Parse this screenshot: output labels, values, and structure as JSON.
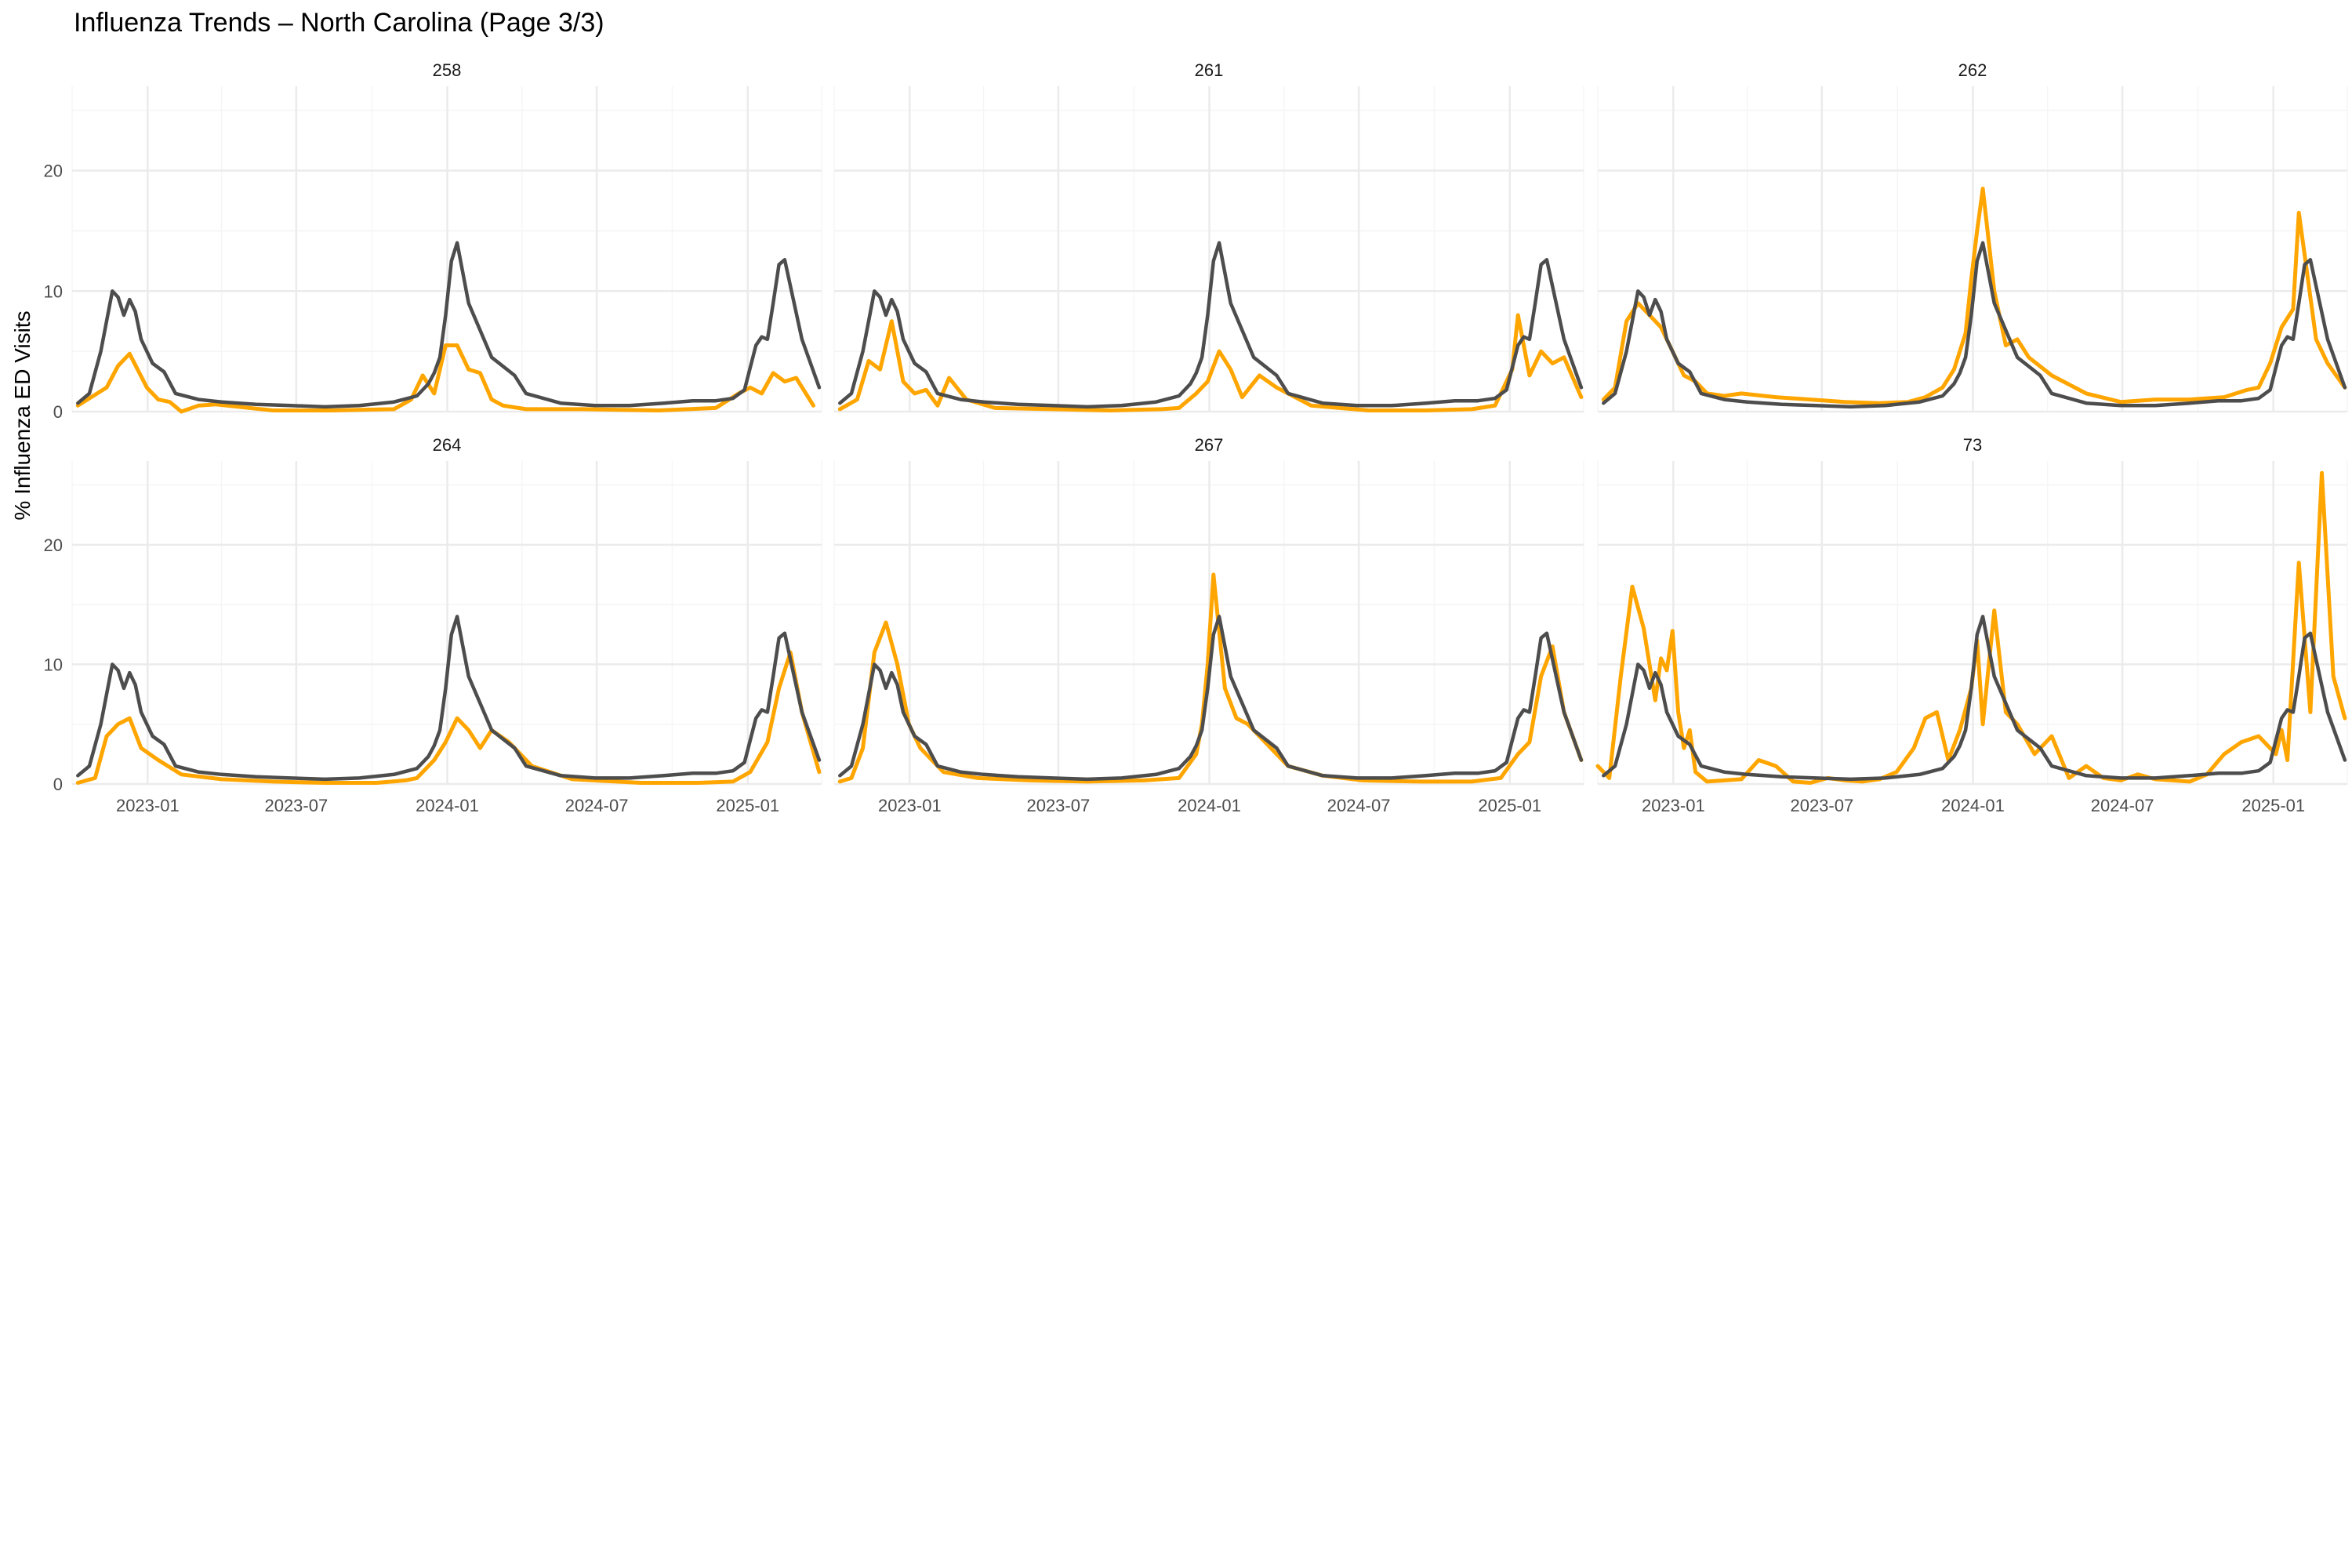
{
  "page_title": "Influenza Trends – North Carolina (Page 3/3)",
  "y_axis_label": "% Influenza ED Visits",
  "colors": {
    "local_series": "#FFA500",
    "state_series": "#4D4D4D",
    "grid_major": "#EBEBEB",
    "grid_minor": "#F5F5F5"
  },
  "chart_data": {
    "type": "line",
    "layout": "facet-grid 2 rows x 3 columns, shared axes",
    "legend": "none",
    "grid": true,
    "x_range": [
      "2022-10-01",
      "2025-04-01"
    ],
    "xlim": [
      "2022-10-01",
      "2025-04-01"
    ],
    "ylim": [
      0,
      27
    ],
    "x_ticks": [
      "2023-01",
      "2023-07",
      "2024-01",
      "2024-07",
      "2025-01"
    ],
    "x_tick_dates": [
      "2023-01-01",
      "2023-07-01",
      "2024-01-01",
      "2024-07-01",
      "2025-01-01"
    ],
    "y_ticks": [
      0,
      10,
      20
    ],
    "state_series": {
      "x": [
        "2022-10-08",
        "2022-10-22",
        "2022-11-05",
        "2022-11-19",
        "2022-11-26",
        "2022-12-03",
        "2022-12-10",
        "2022-12-17",
        "2022-12-24",
        "2023-01-07",
        "2023-01-21",
        "2023-02-04",
        "2023-03-04",
        "2023-04-01",
        "2023-05-13",
        "2023-06-24",
        "2023-08-05",
        "2023-09-16",
        "2023-10-28",
        "2023-11-25",
        "2023-12-09",
        "2023-12-16",
        "2023-12-23",
        "2023-12-30",
        "2024-01-06",
        "2024-01-13",
        "2024-01-27",
        "2024-02-24",
        "2024-03-23",
        "2024-04-06",
        "2024-05-18",
        "2024-06-29",
        "2024-08-10",
        "2024-09-21",
        "2024-10-26",
        "2024-11-23",
        "2024-12-14",
        "2024-12-28",
        "2025-01-11",
        "2025-01-18",
        "2025-01-25",
        "2025-02-01",
        "2025-02-08",
        "2025-02-15",
        "2025-03-08",
        "2025-03-29"
      ],
      "values": [
        0.7,
        1.5,
        5.0,
        10.0,
        9.5,
        8.0,
        9.3,
        8.3,
        6.0,
        4.0,
        3.3,
        1.5,
        1.0,
        0.8,
        0.6,
        0.5,
        0.4,
        0.5,
        0.8,
        1.3,
        2.3,
        3.2,
        4.5,
        8.0,
        12.5,
        14.0,
        9.0,
        4.5,
        3.0,
        1.5,
        0.7,
        0.5,
        0.5,
        0.7,
        0.9,
        0.9,
        1.1,
        1.8,
        5.5,
        6.2,
        6.0,
        9.0,
        12.2,
        12.6,
        6.0,
        2.0
      ]
    },
    "facets": [
      {
        "name": "258",
        "local": {
          "x": [
            "2022-10-08",
            "2022-11-12",
            "2022-11-26",
            "2022-12-10",
            "2022-12-31",
            "2023-01-14",
            "2023-01-28",
            "2023-02-11",
            "2023-03-04",
            "2023-03-25",
            "2023-06-03",
            "2023-08-12",
            "2023-10-28",
            "2023-11-18",
            "2023-12-02",
            "2023-12-16",
            "2023-12-30",
            "2024-01-13",
            "2024-01-27",
            "2024-02-10",
            "2024-02-24",
            "2024-03-09",
            "2024-04-06",
            "2024-06-15",
            "2024-09-14",
            "2024-11-23",
            "2024-12-21",
            "2025-01-04",
            "2025-01-18",
            "2025-02-01",
            "2025-02-15",
            "2025-03-01",
            "2025-03-22"
          ],
          "y": [
            0.5,
            2.0,
            3.8,
            4.8,
            2.0,
            1.0,
            0.8,
            0.0,
            0.5,
            0.6,
            0.1,
            0.1,
            0.2,
            1.0,
            3.0,
            1.5,
            5.5,
            5.5,
            3.5,
            3.2,
            1.0,
            0.5,
            0.2,
            0.2,
            0.1,
            0.3,
            1.5,
            2.0,
            1.5,
            3.2,
            2.5,
            2.8,
            0.5
          ]
        }
      },
      {
        "name": "261",
        "local": {
          "x": [
            "2022-10-08",
            "2022-10-29",
            "2022-11-12",
            "2022-11-26",
            "2022-12-10",
            "2022-12-24",
            "2023-01-07",
            "2023-01-21",
            "2023-02-04",
            "2023-02-18",
            "2023-03-11",
            "2023-04-15",
            "2023-06-24",
            "2023-09-02",
            "2023-11-04",
            "2023-11-25",
            "2023-12-16",
            "2023-12-30",
            "2024-01-13",
            "2024-01-27",
            "2024-02-10",
            "2024-03-02",
            "2024-03-23",
            "2024-05-04",
            "2024-07-13",
            "2024-09-21",
            "2024-11-16",
            "2024-12-14",
            "2025-01-04",
            "2025-01-11",
            "2025-01-25",
            "2025-02-08",
            "2025-02-22",
            "2025-03-08",
            "2025-03-29"
          ],
          "y": [
            0.2,
            1.0,
            4.2,
            3.5,
            7.5,
            2.5,
            1.5,
            1.8,
            0.5,
            2.8,
            1.0,
            0.3,
            0.2,
            0.1,
            0.2,
            0.3,
            1.5,
            2.5,
            5.0,
            3.5,
            1.2,
            3.0,
            2.0,
            0.5,
            0.1,
            0.1,
            0.2,
            0.5,
            3.5,
            8.0,
            3.0,
            5.0,
            4.0,
            4.5,
            1.2
          ]
        }
      },
      {
        "name": "262",
        "local": {
          "x": [
            "2022-10-08",
            "2022-10-22",
            "2022-11-05",
            "2022-11-19",
            "2022-12-03",
            "2022-12-17",
            "2022-12-31",
            "2023-01-14",
            "2023-01-28",
            "2023-02-11",
            "2023-03-04",
            "2023-03-25",
            "2023-05-06",
            "2023-06-17",
            "2023-07-29",
            "2023-09-09",
            "2023-10-14",
            "2023-11-04",
            "2023-11-25",
            "2023-12-09",
            "2023-12-23",
            "2023-12-30",
            "2024-01-06",
            "2024-01-13",
            "2024-01-27",
            "2024-02-10",
            "2024-02-24",
            "2024-03-09",
            "2024-04-06",
            "2024-05-18",
            "2024-06-29",
            "2024-08-10",
            "2024-09-21",
            "2024-11-02",
            "2024-11-30",
            "2024-12-14",
            "2024-12-28",
            "2025-01-11",
            "2025-01-25",
            "2025-02-01",
            "2025-02-08",
            "2025-02-22",
            "2025-03-08",
            "2025-03-29"
          ],
          "y": [
            1.0,
            2.0,
            7.5,
            9.0,
            8.0,
            7.0,
            5.0,
            3.0,
            2.5,
            1.5,
            1.3,
            1.5,
            1.2,
            1.0,
            0.8,
            0.7,
            0.8,
            1.2,
            2.0,
            3.5,
            6.5,
            11.0,
            15.0,
            18.5,
            10.0,
            5.5,
            6.0,
            4.5,
            3.0,
            1.5,
            0.8,
            1.0,
            1.0,
            1.2,
            1.8,
            2.0,
            4.0,
            7.0,
            8.5,
            16.5,
            13.0,
            6.0,
            4.0,
            2.0
          ]
        }
      },
      {
        "name": "264",
        "local": {
          "x": [
            "2022-10-08",
            "2022-10-29",
            "2022-11-12",
            "2022-11-26",
            "2022-12-10",
            "2022-12-24",
            "2023-01-14",
            "2023-02-11",
            "2023-04-01",
            "2023-06-03",
            "2023-08-05",
            "2023-10-07",
            "2023-11-11",
            "2023-11-25",
            "2023-12-16",
            "2023-12-30",
            "2024-01-13",
            "2024-01-27",
            "2024-02-10",
            "2024-02-24",
            "2024-03-16",
            "2024-04-13",
            "2024-06-01",
            "2024-08-24",
            "2024-11-02",
            "2024-12-14",
            "2025-01-04",
            "2025-01-25",
            "2025-02-08",
            "2025-02-22",
            "2025-03-08",
            "2025-03-29"
          ],
          "y": [
            0.1,
            0.5,
            4.0,
            5.0,
            5.5,
            3.0,
            2.0,
            0.8,
            0.4,
            0.2,
            0.1,
            0.1,
            0.3,
            0.5,
            2.0,
            3.5,
            5.5,
            4.5,
            3.0,
            4.5,
            3.5,
            1.5,
            0.4,
            0.1,
            0.1,
            0.2,
            1.0,
            3.5,
            8.0,
            11.0,
            6.0,
            1.0
          ]
        }
      },
      {
        "name": "267",
        "local": {
          "x": [
            "2022-10-08",
            "2022-10-22",
            "2022-11-05",
            "2022-11-19",
            "2022-12-03",
            "2022-12-17",
            "2022-12-31",
            "2023-01-14",
            "2023-02-11",
            "2023-03-25",
            "2023-05-27",
            "2023-08-05",
            "2023-10-14",
            "2023-11-25",
            "2023-12-16",
            "2023-12-23",
            "2023-12-30",
            "2024-01-06",
            "2024-01-20",
            "2024-02-03",
            "2024-02-17",
            "2024-03-09",
            "2024-04-06",
            "2024-05-18",
            "2024-07-06",
            "2024-09-14",
            "2024-11-16",
            "2024-12-21",
            "2025-01-11",
            "2025-01-25",
            "2025-02-08",
            "2025-02-22",
            "2025-03-08",
            "2025-03-29"
          ],
          "y": [
            0.2,
            0.5,
            3.0,
            11.0,
            13.5,
            10.0,
            5.0,
            3.0,
            1.0,
            0.5,
            0.3,
            0.2,
            0.3,
            0.5,
            2.5,
            5.0,
            10.0,
            17.5,
            8.0,
            5.5,
            5.0,
            3.5,
            1.5,
            0.7,
            0.3,
            0.2,
            0.2,
            0.5,
            2.5,
            3.5,
            9.0,
            11.5,
            6.0,
            2.0
          ]
        }
      },
      {
        "name": "73",
        "local": {
          "x": [
            "2022-10-01",
            "2022-10-15",
            "2022-10-29",
            "2022-11-12",
            "2022-11-26",
            "2022-12-10",
            "2022-12-17",
            "2022-12-24",
            "2022-12-31",
            "2023-01-07",
            "2023-01-14",
            "2023-01-21",
            "2023-01-28",
            "2023-02-11",
            "2023-03-04",
            "2023-03-25",
            "2023-04-15",
            "2023-05-06",
            "2023-05-27",
            "2023-06-17",
            "2023-07-08",
            "2023-07-29",
            "2023-08-19",
            "2023-09-09",
            "2023-09-30",
            "2023-10-21",
            "2023-11-04",
            "2023-11-18",
            "2023-12-02",
            "2023-12-16",
            "2023-12-30",
            "2024-01-06",
            "2024-01-13",
            "2024-01-27",
            "2024-02-10",
            "2024-02-24",
            "2024-03-16",
            "2024-04-06",
            "2024-04-27",
            "2024-05-18",
            "2024-06-08",
            "2024-06-29",
            "2024-07-20",
            "2024-08-10",
            "2024-08-31",
            "2024-09-21",
            "2024-10-12",
            "2024-11-02",
            "2024-11-23",
            "2024-12-14",
            "2024-12-28",
            "2025-01-04",
            "2025-01-11",
            "2025-01-18",
            "2025-02-01",
            "2025-02-15",
            "2025-03-01",
            "2025-03-15",
            "2025-03-29"
          ],
          "y": [
            1.5,
            0.5,
            9.0,
            16.5,
            13.0,
            7.0,
            10.5,
            9.5,
            12.8,
            6.0,
            3.0,
            4.5,
            1.0,
            0.2,
            0.3,
            0.4,
            2.0,
            1.5,
            0.2,
            0.1,
            0.5,
            0.3,
            0.2,
            0.4,
            1.0,
            3.0,
            5.5,
            6.0,
            2.0,
            4.5,
            8.0,
            12.0,
            5.0,
            14.5,
            6.0,
            5.0,
            2.5,
            4.0,
            0.5,
            1.5,
            0.5,
            0.3,
            0.8,
            0.4,
            0.3,
            0.2,
            0.8,
            2.5,
            3.5,
            4.0,
            3.0,
            2.5,
            4.5,
            2.0,
            18.5,
            6.0,
            26.0,
            9.0,
            5.5
          ]
        }
      }
    ]
  }
}
